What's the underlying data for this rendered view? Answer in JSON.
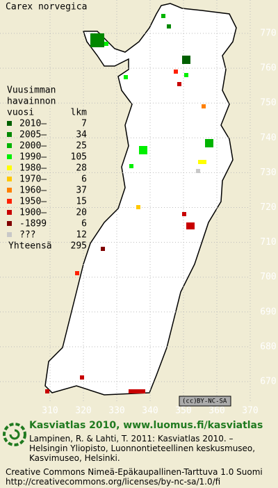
{
  "map": {
    "title": "Carex norvegica",
    "yticks": [
      770,
      760,
      750,
      740,
      730,
      720,
      710,
      700,
      690,
      680,
      670
    ],
    "xticks": [
      310,
      320,
      330,
      340,
      350,
      360,
      370
    ],
    "legend": {
      "title": [
        "Vuusimman",
        "havainnon"
      ],
      "column_year": "vuosi",
      "column_count": "lkm",
      "entries": [
        {
          "label": "2010–",
          "count": 7,
          "color": "#006000"
        },
        {
          "label": "2005–",
          "count": 34,
          "color": "#008800"
        },
        {
          "label": "2000–",
          "count": 25,
          "color": "#00b400"
        },
        {
          "label": "1990–",
          "count": 105,
          "color": "#00f000"
        },
        {
          "label": "1980–",
          "count": 28,
          "color": "#ffff00"
        },
        {
          "label": "1970–",
          "count": 6,
          "color": "#ffc800"
        },
        {
          "label": "1960–",
          "count": 37,
          "color": "#ff8000"
        },
        {
          "label": "1950–",
          "count": 15,
          "color": "#ff2000"
        },
        {
          "label": "1900–",
          "count": 20,
          "color": "#c80000"
        },
        {
          "label": "-1899",
          "count": 6,
          "color": "#800000"
        },
        {
          "label": "???",
          "count": 12,
          "color": "#c8c8c8"
        }
      ],
      "total_label": "Yhteensä",
      "total": 295
    },
    "license_badge": [
      "(cc)",
      "BY-NC-SA"
    ]
  },
  "footer": {
    "heading": "Kasviatlas 2010, www.luomus.fi/kasviatlas",
    "citation": [
      "Lampinen, R. & Lahti, T. 2011: Kasviatlas 2010. –",
      "Helsingin Yliopisto, Luonnontieteellinen keskusmuseo,",
      "Kasvimuseo, Helsinki."
    ],
    "license": [
      "Creative Commons Nimeä-Epäkaupallinen-Tarttuva 1.0 Suomi",
      "http://creativecommons.org/licenses/by-nc-sa/1.0/fi"
    ]
  }
}
